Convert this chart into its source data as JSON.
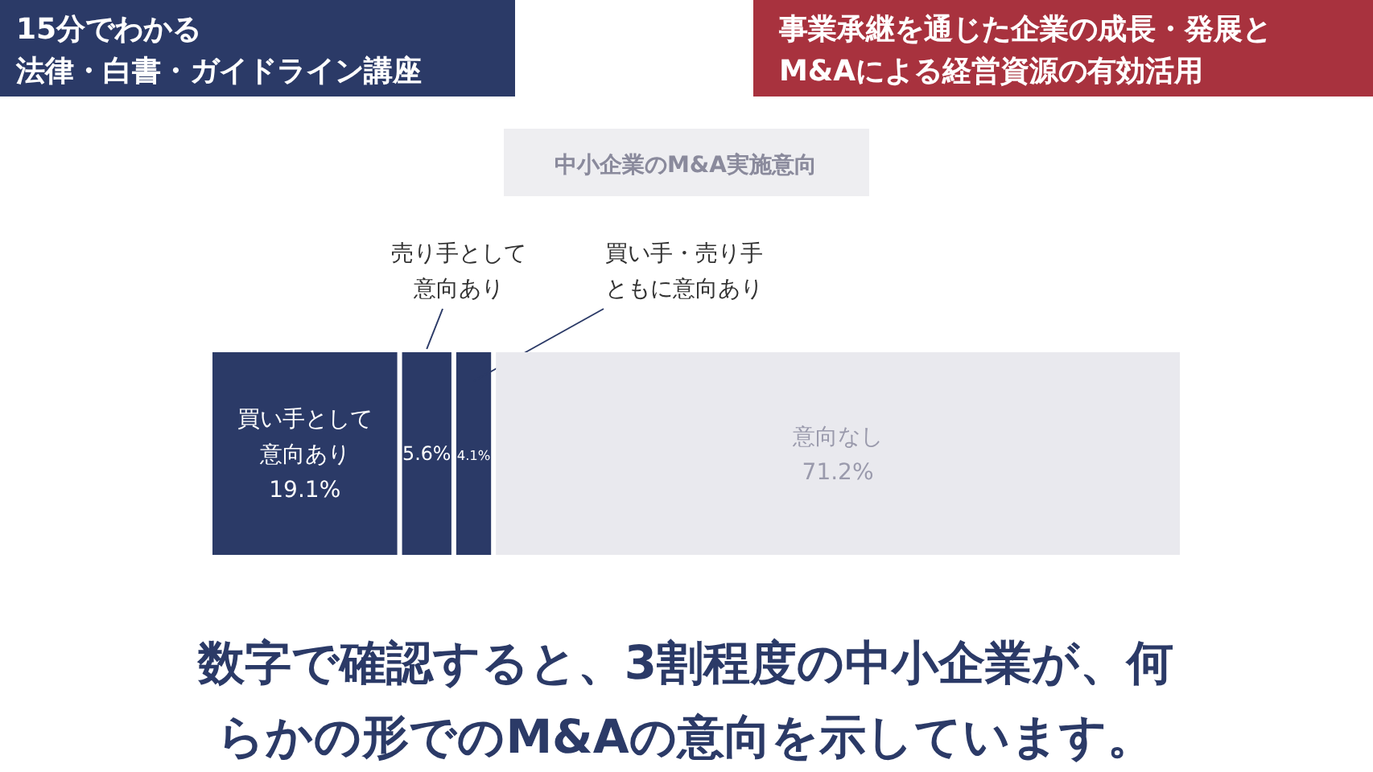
{
  "chart_data": {
    "type": "bar",
    "orientation": "horizontal",
    "stacked": true,
    "title": "中小企業のM&A実施意向",
    "subtitle": "事業承継を通じた企業の成長・発展とM&Aによる経営資源の有効活用",
    "annotations": [
      "15分でわかる法律・白書・ガイドライン講座",
      "数字で確認すると、3割程度の中小企業が、何らかの形でのM&Aの意向を示しています。"
    ],
    "categories": [
      null
    ],
    "xlim": [
      0,
      100
    ],
    "series": [
      {
        "name": "買い手として意向あり",
        "color": "#2b3a67",
        "values": [
          19.1
        ],
        "value_labels": [
          "19.1%"
        ]
      },
      {
        "name": "売り手として意向あり",
        "color": "#2b3a67",
        "values": [
          5.6
        ],
        "value_labels": [
          "5.6%"
        ]
      },
      {
        "name": "買い手・売り手ともに意向あり",
        "color": "#2b3a67",
        "values": [
          4.1
        ],
        "value_labels": [
          "4.1%"
        ]
      },
      {
        "name": "意向なし",
        "color": "#e9e9ee",
        "values": [
          71.2
        ],
        "value_labels": [
          "71.2%"
        ]
      }
    ]
  }
}
